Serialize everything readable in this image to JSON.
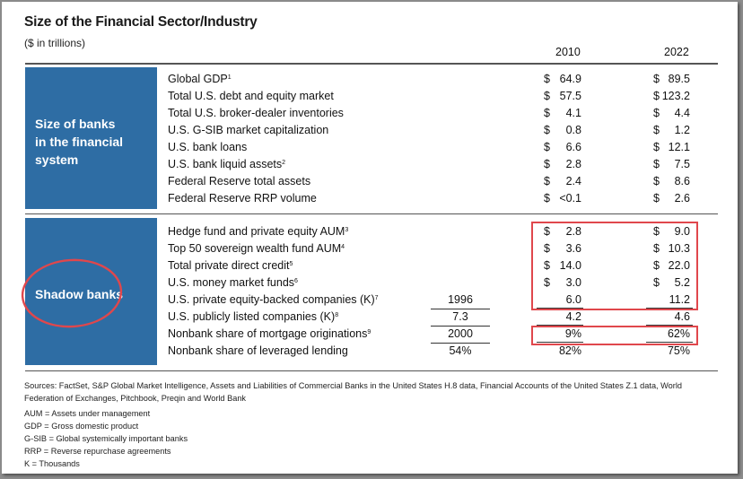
{
  "title": "Size of the Financial Sector/Industry",
  "unit_note": "($ in trillions)",
  "years": [
    "2010",
    "2022"
  ],
  "dollar_sign": "$",
  "section1": {
    "label_lines": [
      "Size of banks",
      "in the financial",
      "system"
    ],
    "rows": [
      {
        "label": "Global GDP",
        "note": "1",
        "v2010": "64.9",
        "v2022": "89.5"
      },
      {
        "label": "Total U.S. debt and equity market",
        "note": "",
        "v2010": "57.5",
        "v2022": "123.2"
      },
      {
        "label": "Total U.S. broker-dealer inventories",
        "note": "",
        "v2010": "4.1",
        "v2022": "4.4"
      },
      {
        "label": "U.S. G-SIB market capitalization",
        "note": "",
        "v2010": "0.8",
        "v2022": "1.2"
      },
      {
        "label": "U.S. bank loans",
        "note": "",
        "v2010": "6.6",
        "v2022": "12.1"
      },
      {
        "label": "U.S. bank liquid assets",
        "note": "2",
        "v2010": "2.8",
        "v2022": "7.5"
      },
      {
        "label": "Federal Reserve total assets",
        "note": "",
        "v2010": "2.4",
        "v2022": "8.6"
      },
      {
        "label": "Federal Reserve RRP volume",
        "note": "",
        "v2010": "<0.1",
        "v2022": "2.6"
      }
    ]
  },
  "section2": {
    "label": "Shadow banks",
    "rows": [
      {
        "label": "Hedge fund and private equity AUM",
        "note": "3",
        "base": "",
        "v2010": "2.8",
        "v2022": "9.0"
      },
      {
        "label": "Top 50 sovereign wealth fund AUM",
        "note": "4",
        "base": "",
        "v2010": "3.6",
        "v2022": "10.3"
      },
      {
        "label": "Total private direct credit",
        "note": "5",
        "base": "",
        "v2010": "14.0",
        "v2022": "22.0"
      },
      {
        "label": "U.S. money market funds",
        "note": "6",
        "base": "",
        "v2010": "3.0",
        "v2022": "5.2"
      },
      {
        "label": "U.S. private equity-backed companies (K)",
        "note": "7",
        "base": "1996",
        "v2010": "6.0",
        "v2022": "11.2"
      },
      {
        "label": "U.S. publicly listed companies (K)",
        "note": "8",
        "base": "7.3",
        "v2010": "4.2",
        "v2022": "4.6"
      },
      {
        "label": "Nonbank share of mortgage originations",
        "note": "9",
        "base": "2000",
        "v2010": "9%",
        "v2022": "62%"
      },
      {
        "label": "Nonbank share of leveraged lending",
        "note": "",
        "base": "54%",
        "v2010": "82%",
        "v2022": "75%"
      }
    ]
  },
  "sources": "Sources: FactSet, S&P Global Market Intelligence, Assets and Liabilities of Commercial Banks in the United States H.8 data, Financial Accounts of the United States Z.1 data, World Federation of Exchanges, Pitchbook, Preqin and World Bank",
  "abbreviations": [
    "AUM = Assets under management",
    "GDP = Gross domestic product",
    "G-SIB = Global systemically important banks",
    "RRP = Reverse repurchase agreements",
    "K = Thousands"
  ],
  "annotation_color": "#e0474c",
  "band_color": "#2e6da4"
}
